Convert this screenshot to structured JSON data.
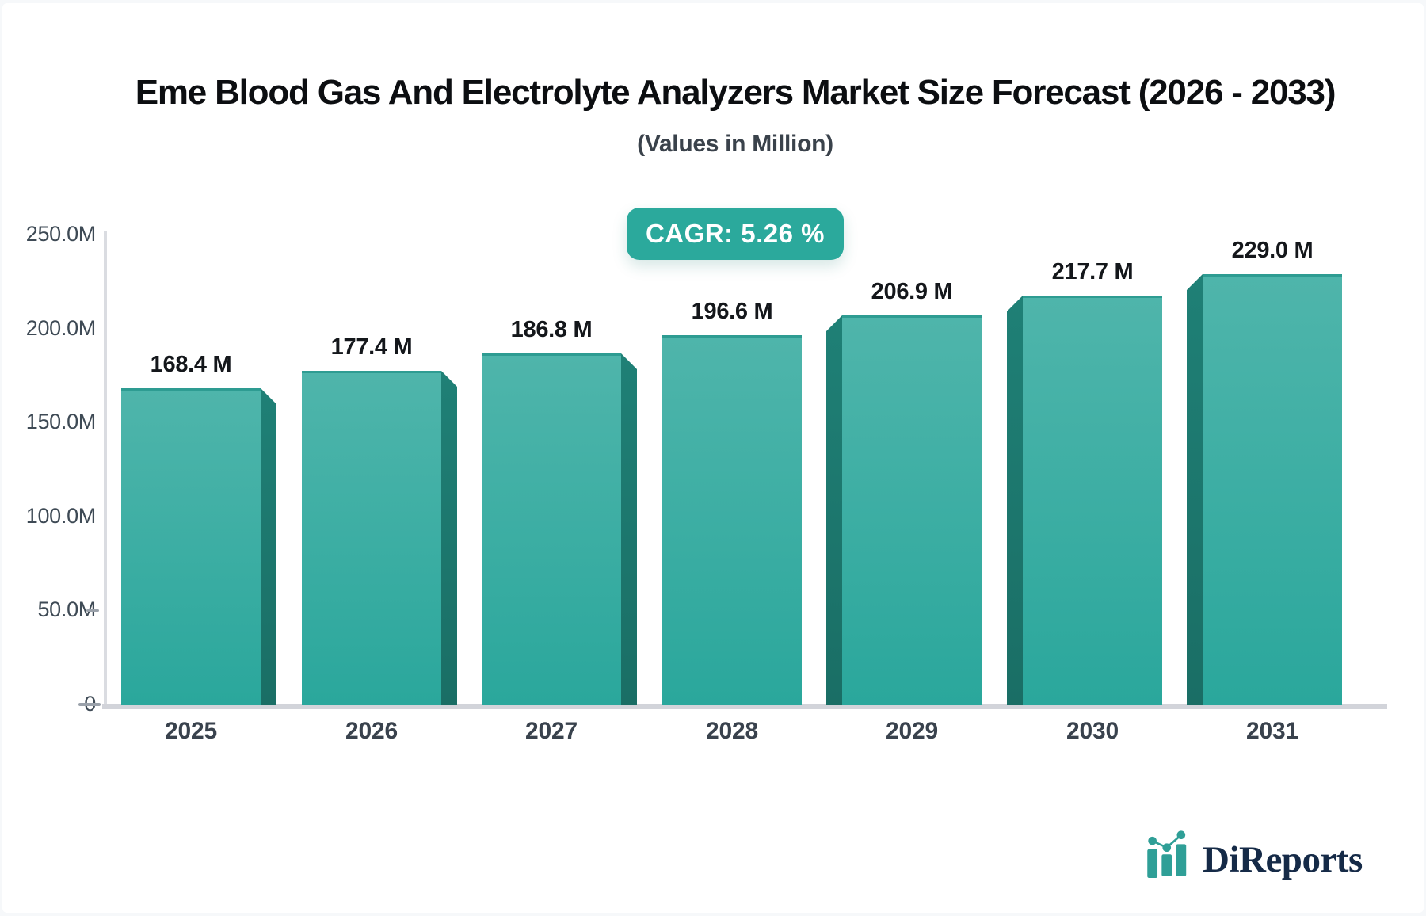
{
  "header": {
    "title": "Eme Blood Gas And Electrolyte Analyzers Market Size Forecast (2026 - 2033)",
    "subtitle": "(Values in Million)"
  },
  "badge": {
    "label": "CAGR: 5.26 %"
  },
  "chart_data": {
    "type": "bar",
    "title": "Eme Blood Gas And Electrolyte Analyzers Market Size Forecast (2026 - 2033)",
    "subtitle": "(Values in Million)",
    "xlabel": "",
    "ylabel": "",
    "ylim": [
      0,
      250
    ],
    "grid": false,
    "legend": false,
    "categories": [
      "2025",
      "2026",
      "2027",
      "2028",
      "2029",
      "2030",
      "2031"
    ],
    "values": [
      168.4,
      177.4,
      186.8,
      196.6,
      206.9,
      217.7,
      229.0
    ],
    "value_labels": [
      "168.4 M",
      "177.4 M",
      "186.8 M",
      "196.6 M",
      "206.9 M",
      "217.7 M",
      "229.0 M"
    ],
    "y_ticks": [
      {
        "label": "250.0M",
        "value": 250,
        "dash": false
      },
      {
        "label": "200.0M",
        "value": 200,
        "dash": false
      },
      {
        "label": "150.0M",
        "value": 150,
        "dash": false
      },
      {
        "label": "100.0M",
        "value": 100,
        "dash": false
      },
      {
        "label": "50.0M",
        "value": 50,
        "dash": true
      },
      {
        "label": "0",
        "value": 0,
        "dash": true
      }
    ],
    "cagr": "5.26 %"
  },
  "colors": {
    "bar_face_top": "#4fb5ab",
    "bar_face_bottom": "#2aa79c",
    "bar_top_edge": "#2e9c92",
    "bar_side_top": "#1f8076",
    "bar_side_bottom": "#1a6e65",
    "accent_badge": "#2ba99c",
    "axis_line": "#d2d4da",
    "tick_color": "#9aa1aa",
    "logo_navy": "#152a47",
    "logo_teal": "#2f9f97"
  },
  "logo": {
    "text": "DiReports",
    "icon": "bar-chart-logo-icon"
  }
}
